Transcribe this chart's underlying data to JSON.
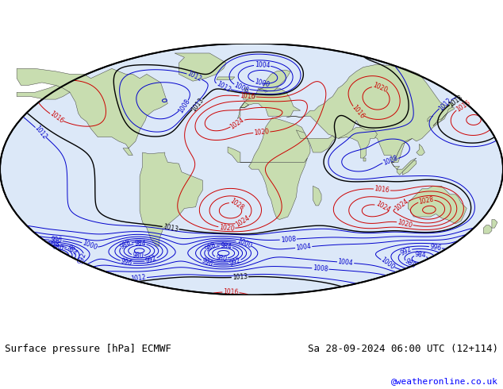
{
  "title_left": "Surface pressure [hPa] ECMWF",
  "title_right": "Sa 28-09-2024 06:00 UTC (12+114)",
  "credit": "@weatheronline.co.uk",
  "bg_color": "#ffffff",
  "ocean_color": "#dce8f8",
  "land_color": "#c8ddb0",
  "gray_color": "#b8b8b8",
  "contour_low_color": "#0000cc",
  "contour_high_color": "#cc0000",
  "contour_base_color": "#000000",
  "label_fontsize": 5.5,
  "title_fontsize": 9,
  "credit_fontsize": 8,
  "fig_width": 6.34,
  "fig_height": 4.9
}
